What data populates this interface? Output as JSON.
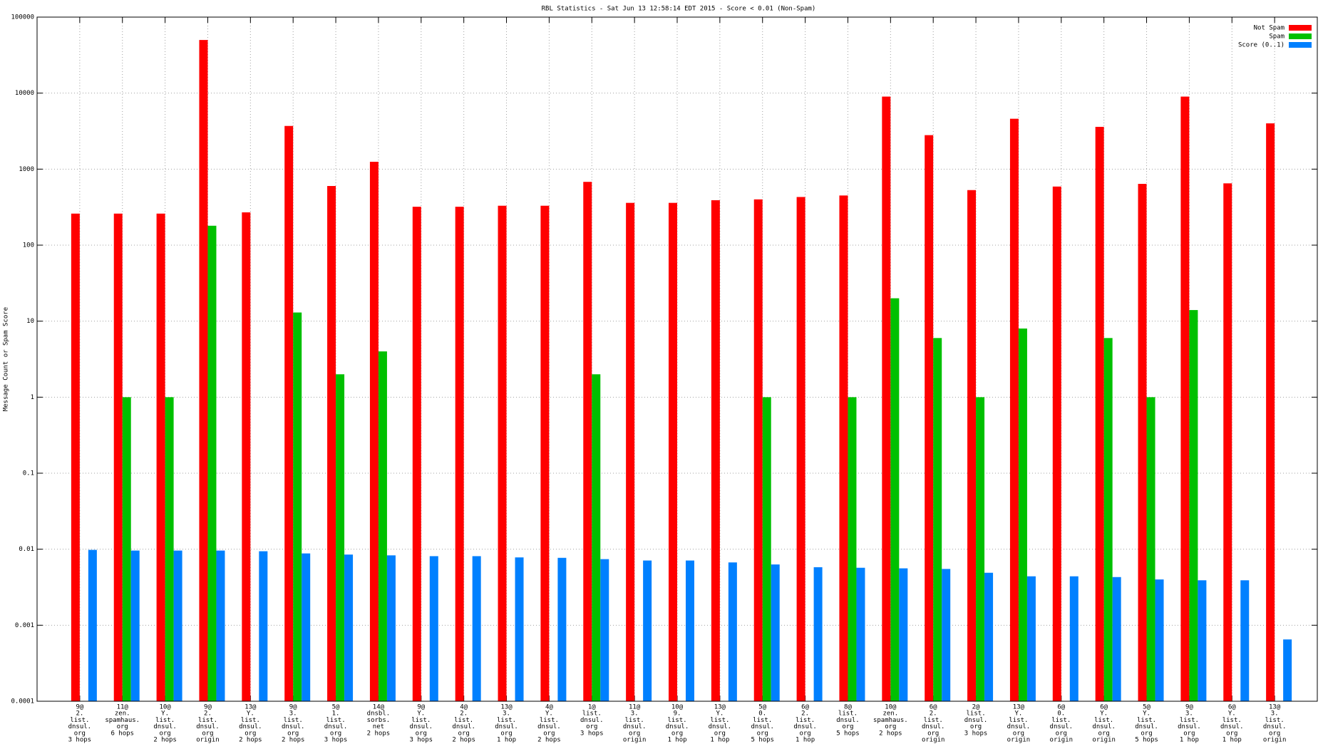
{
  "chart_data": {
    "type": "bar",
    "title": "RBL Statistics - Sat Jun 13 12:58:14 EDT 2015 - Score < 0.01 (Non-Spam)",
    "y_label": "Message Count or Spam Score",
    "log_y": true,
    "grid": true,
    "legend": "top-right",
    "categories": [
      [
        "9@",
        "2.",
        "list.",
        "dnsul.",
        "org",
        "3 hops"
      ],
      [
        "11@",
        "zen.",
        "spamhaus.",
        "org",
        "6 hops"
      ],
      [
        "10@",
        "Y.",
        "list.",
        "dnsul.",
        "org",
        "2 hops"
      ],
      [
        "9@",
        "2.",
        "list.",
        "dnsul.",
        "org",
        "origin"
      ],
      [
        "13@",
        "Y.",
        "list.",
        "dnsul.",
        "org",
        "2 hops"
      ],
      [
        "9@",
        "3.",
        "list.",
        "dnsul.",
        "org",
        "2 hops"
      ],
      [
        "5@",
        "1.",
        "list.",
        "dnsul.",
        "org",
        "3 hops"
      ],
      [
        "14@",
        "dnsbl.",
        "sorbs.",
        "net",
        "2 hops"
      ],
      [
        "9@",
        "Y.",
        "list.",
        "dnsul.",
        "org",
        "3 hops"
      ],
      [
        "4@",
        "2.",
        "list.",
        "dnsul.",
        "org",
        "2 hops"
      ],
      [
        "13@",
        "3.",
        "list.",
        "dnsul.",
        "org",
        "1 hop"
      ],
      [
        "4@",
        "Y.",
        "list.",
        "dnsul.",
        "org",
        "2 hops"
      ],
      [
        "1@",
        "list.",
        "dnsul.",
        "org",
        "3 hops"
      ],
      [
        "11@",
        "3.",
        "list.",
        "dnsul.",
        "org",
        "origin"
      ],
      [
        "10@",
        "9.",
        "list.",
        "dnsul.",
        "org",
        "1 hop"
      ],
      [
        "13@",
        "Y.",
        "list.",
        "dnsul.",
        "org",
        "1 hop"
      ],
      [
        "5@",
        "0.",
        "list.",
        "dnsul.",
        "org",
        "5 hops"
      ],
      [
        "6@",
        "2.",
        "list.",
        "dnsul.",
        "org",
        "1 hop"
      ],
      [
        "8@",
        "list.",
        "dnsul.",
        "org",
        "5 hops"
      ],
      [
        "10@",
        "zen.",
        "spamhaus.",
        "org",
        "2 hops"
      ],
      [
        "6@",
        "2.",
        "list.",
        "dnsul.",
        "org",
        "origin"
      ],
      [
        "2@",
        "list.",
        "dnsul.",
        "org",
        "3 hops"
      ],
      [
        "13@",
        "Y.",
        "list.",
        "dnsul.",
        "org",
        "origin"
      ],
      [
        "6@",
        "0.",
        "list.",
        "dnsul.",
        "org",
        "origin"
      ],
      [
        "6@",
        "Y.",
        "list.",
        "dnsul.",
        "org",
        "origin"
      ],
      [
        "5@",
        "Y.",
        "list.",
        "dnsul.",
        "org",
        "5 hops"
      ],
      [
        "9@",
        "3.",
        "list.",
        "dnsul.",
        "org",
        "1 hop"
      ],
      [
        "6@",
        "Y.",
        "list.",
        "dnsul.",
        "org",
        "1 hop"
      ],
      [
        "13@",
        "3.",
        "list.",
        "dnsul.",
        "org",
        "origin"
      ]
    ],
    "series": [
      {
        "name": "Not Spam",
        "color": "#ff0000",
        "values": [
          260,
          260,
          260,
          50000,
          270,
          3700,
          600,
          1250,
          320,
          320,
          330,
          330,
          680,
          360,
          360,
          390,
          400,
          430,
          450,
          9000,
          2800,
          530,
          4600,
          590,
          3600,
          640,
          9000,
          650,
          4000
        ]
      },
      {
        "name": "Spam",
        "color": "#00c000",
        "values": [
          null,
          1,
          1,
          180,
          null,
          13,
          2,
          4,
          null,
          null,
          null,
          null,
          2,
          null,
          null,
          null,
          1,
          null,
          1,
          20,
          6,
          1,
          8,
          null,
          6,
          1,
          14,
          null,
          null
        ]
      },
      {
        "name": "Score (0..1)",
        "color": "#0080ff",
        "values": [
          0.0098,
          0.0096,
          0.0096,
          0.0096,
          0.0094,
          0.0088,
          0.0085,
          0.0083,
          0.0081,
          0.0081,
          0.0078,
          0.0077,
          0.0074,
          0.0071,
          0.0071,
          0.0067,
          0.0063,
          0.0058,
          0.0057,
          0.0056,
          0.0055,
          0.0049,
          0.0044,
          0.0044,
          0.0043,
          0.004,
          0.0039,
          0.0039,
          0.00065
        ]
      }
    ],
    "ylim": [
      0.0001,
      100000
    ],
    "yticks": [
      0.0001,
      0.001,
      0.01,
      0.1,
      1,
      10,
      100,
      1000,
      10000,
      100000
    ]
  }
}
